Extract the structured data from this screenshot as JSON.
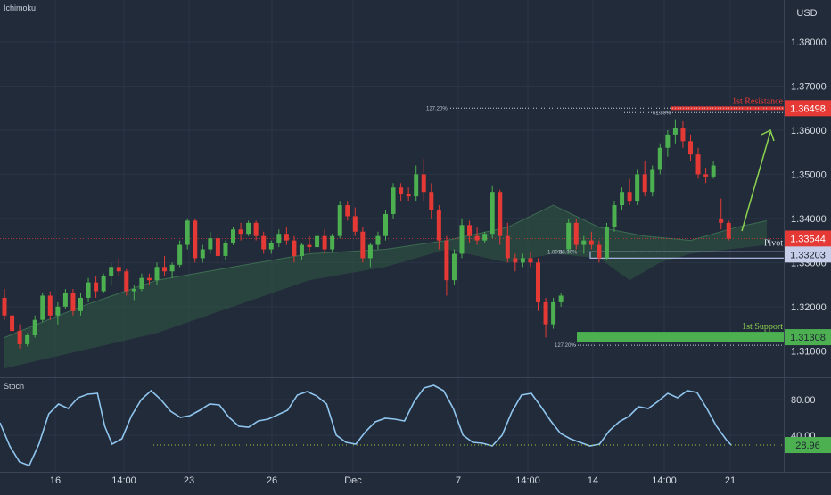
{
  "top_left": "Ichimoku",
  "currency": "USD",
  "stoch_title": "Stoch",
  "colors": {
    "background": "#222b3a",
    "grid": "#2c3546",
    "bull": "#4caf50",
    "bear": "#e53935",
    "resistance": "#e53935",
    "support": "#4caf50",
    "pivot": "#aeb9e6",
    "stoch_line": "#8fc5ee",
    "cloud": "#2f5a44",
    "arrow": "#8bd24f"
  },
  "chart_data": [
    {
      "type": "candlestick",
      "title": "",
      "y_range": [
        1.304,
        1.3895
      ],
      "y_ticks": [
        "1.38000",
        "1.37000",
        "1.36000",
        "1.35000",
        "1.34000",
        "1.33000",
        "1.32000",
        "1.31000"
      ],
      "x_ticks": [
        "16",
        "14:00",
        "23",
        "26",
        "Dec",
        "7",
        "14:00",
        "14",
        "14:00",
        "21"
      ],
      "current_price": "1.33544",
      "levels": [
        {
          "label": "1st Resistance",
          "value": "1.36498",
          "fib": "127.20%",
          "fib2": "61.80%"
        },
        {
          "label": "Pivot",
          "value": "1.33203",
          "fib": "1.80%",
          "fib2": "38.00%"
        },
        {
          "label": "1st Support",
          "value": "1.31308",
          "fib": "127.20%"
        }
      ],
      "candles": [
        [
          1.322,
          1.324,
          1.317,
          1.318
        ],
        [
          1.318,
          1.319,
          1.313,
          1.3145
        ],
        [
          1.3145,
          1.316,
          1.3105,
          1.3115
        ],
        [
          1.3115,
          1.314,
          1.311,
          1.3135
        ],
        [
          1.3135,
          1.318,
          1.313,
          1.317
        ],
        [
          1.317,
          1.323,
          1.3165,
          1.3225
        ],
        [
          1.3225,
          1.3235,
          1.317,
          1.318
        ],
        [
          1.318,
          1.321,
          1.316,
          1.32
        ],
        [
          1.32,
          1.324,
          1.3195,
          1.323
        ],
        [
          1.323,
          1.324,
          1.318,
          1.319
        ],
        [
          1.319,
          1.323,
          1.318,
          1.322
        ],
        [
          1.322,
          1.3265,
          1.321,
          1.3255
        ],
        [
          1.3255,
          1.327,
          1.322,
          1.3235
        ],
        [
          1.3235,
          1.3275,
          1.323,
          1.327
        ],
        [
          1.327,
          1.33,
          1.325,
          1.329
        ],
        [
          1.329,
          1.331,
          1.327,
          1.328
        ],
        [
          1.328,
          1.3285,
          1.3225,
          1.3235
        ],
        [
          1.3235,
          1.325,
          1.3215,
          1.324
        ],
        [
          1.324,
          1.3275,
          1.3235,
          1.3265
        ],
        [
          1.3265,
          1.3275,
          1.325,
          1.326
        ],
        [
          1.326,
          1.33,
          1.325,
          1.329
        ],
        [
          1.329,
          1.3315,
          1.327,
          1.328
        ],
        [
          1.328,
          1.33,
          1.3265,
          1.3295
        ],
        [
          1.3295,
          1.335,
          1.329,
          1.334
        ],
        [
          1.334,
          1.34,
          1.333,
          1.3395
        ],
        [
          1.3395,
          1.34,
          1.33,
          1.331
        ],
        [
          1.331,
          1.334,
          1.33,
          1.333
        ],
        [
          1.333,
          1.337,
          1.332,
          1.3355
        ],
        [
          1.3355,
          1.3365,
          1.33,
          1.3315
        ],
        [
          1.3315,
          1.335,
          1.3305,
          1.3345
        ],
        [
          1.3345,
          1.338,
          1.334,
          1.3375
        ],
        [
          1.3375,
          1.339,
          1.335,
          1.3365
        ],
        [
          1.3365,
          1.3395,
          1.336,
          1.339
        ],
        [
          1.339,
          1.3395,
          1.335,
          1.336
        ],
        [
          1.336,
          1.337,
          1.332,
          1.333
        ],
        [
          1.333,
          1.335,
          1.332,
          1.3345
        ],
        [
          1.3345,
          1.3375,
          1.3335,
          1.3365
        ],
        [
          1.3365,
          1.338,
          1.334,
          1.335
        ],
        [
          1.335,
          1.336,
          1.33,
          1.3315
        ],
        [
          1.3315,
          1.3345,
          1.3305,
          1.334
        ],
        [
          1.334,
          1.336,
          1.3325,
          1.3335
        ],
        [
          1.3335,
          1.337,
          1.333,
          1.336
        ],
        [
          1.336,
          1.3375,
          1.332,
          1.333
        ],
        [
          1.333,
          1.3365,
          1.3325,
          1.336
        ],
        [
          1.336,
          1.344,
          1.3355,
          1.343
        ],
        [
          1.343,
          1.344,
          1.3395,
          1.3405
        ],
        [
          1.3405,
          1.3425,
          1.336,
          1.337
        ],
        [
          1.337,
          1.338,
          1.33,
          1.331
        ],
        [
          1.331,
          1.3345,
          1.329,
          1.334
        ],
        [
          1.334,
          1.337,
          1.333,
          1.336
        ],
        [
          1.336,
          1.342,
          1.335,
          1.341
        ],
        [
          1.341,
          1.348,
          1.34,
          1.347
        ],
        [
          1.347,
          1.348,
          1.344,
          1.3455
        ],
        [
          1.3455,
          1.347,
          1.344,
          1.345
        ],
        [
          1.345,
          1.352,
          1.344,
          1.35
        ],
        [
          1.35,
          1.3535,
          1.344,
          1.346
        ],
        [
          1.346,
          1.348,
          1.34,
          1.342
        ],
        [
          1.342,
          1.343,
          1.333,
          1.335
        ],
        [
          1.335,
          1.336,
          1.3225,
          1.326
        ],
        [
          1.326,
          1.333,
          1.325,
          1.332
        ],
        [
          1.332,
          1.34,
          1.331,
          1.3385
        ],
        [
          1.3385,
          1.3395,
          1.3345,
          1.336
        ],
        [
          1.336,
          1.338,
          1.334,
          1.335
        ],
        [
          1.335,
          1.337,
          1.3345,
          1.3365
        ],
        [
          1.3365,
          1.3475,
          1.3355,
          1.346
        ],
        [
          1.346,
          1.3465,
          1.334,
          1.336
        ],
        [
          1.336,
          1.339,
          1.33,
          1.331
        ],
        [
          1.331,
          1.332,
          1.328,
          1.33
        ],
        [
          1.33,
          1.332,
          1.329,
          1.331
        ],
        [
          1.331,
          1.3325,
          1.329,
          1.33
        ],
        [
          1.33,
          1.331,
          1.319,
          1.321
        ],
        [
          1.321,
          1.322,
          1.313,
          1.316
        ],
        [
          1.316,
          1.322,
          1.315,
          1.321
        ],
        [
          1.321,
          1.323,
          1.32,
          1.3225
        ],
        [
          1.333,
          1.34,
          1.332,
          1.339
        ],
        [
          1.339,
          1.34,
          1.333,
          1.334
        ],
        [
          1.334,
          1.336,
          1.332,
          1.335
        ],
        [
          1.335,
          1.337,
          1.333,
          1.334
        ],
        [
          1.334,
          1.335,
          1.33,
          1.331
        ],
        [
          1.331,
          1.339,
          1.3305,
          1.338
        ],
        [
          1.338,
          1.344,
          1.337,
          1.343
        ],
        [
          1.343,
          1.347,
          1.342,
          1.346
        ],
        [
          1.346,
          1.349,
          1.343,
          1.344
        ],
        [
          1.344,
          1.351,
          1.343,
          1.35
        ],
        [
          1.35,
          1.353,
          1.345,
          1.346
        ],
        [
          1.346,
          1.352,
          1.345,
          1.351
        ],
        [
          1.351,
          1.357,
          1.35,
          1.356
        ],
        [
          1.356,
          1.36,
          1.354,
          1.359
        ],
        [
          1.359,
          1.3625,
          1.357,
          1.3605
        ],
        [
          1.3605,
          1.362,
          1.356,
          1.3575
        ],
        [
          1.3575,
          1.359,
          1.353,
          1.3545
        ],
        [
          1.3545,
          1.356,
          1.349,
          1.35
        ],
        [
          1.35,
          1.3515,
          1.348,
          1.3495
        ],
        [
          1.3495,
          1.353,
          1.349,
          1.352
        ],
        [
          1.34,
          1.3445,
          1.3375,
          1.339
        ],
        [
          1.339,
          1.3395,
          1.335,
          1.3354
        ]
      ],
      "cloud_upper": [
        [
          0,
          1.313
        ],
        [
          10,
          1.32
        ],
        [
          20,
          1.326
        ],
        [
          30,
          1.329
        ],
        [
          40,
          1.332
        ],
        [
          50,
          1.333
        ],
        [
          58,
          1.335
        ],
        [
          66,
          1.338
        ],
        [
          72,
          1.343
        ],
        [
          78,
          1.338
        ],
        [
          84,
          1.336
        ],
        [
          90,
          1.335
        ],
        [
          96,
          1.338
        ],
        [
          100,
          1.3395
        ]
      ],
      "cloud_lower": [
        [
          0,
          1.306
        ],
        [
          10,
          1.31
        ],
        [
          20,
          1.314
        ],
        [
          30,
          1.32
        ],
        [
          40,
          1.326
        ],
        [
          50,
          1.329
        ],
        [
          58,
          1.333
        ],
        [
          66,
          1.33
        ],
        [
          72,
          1.332
        ],
        [
          78,
          1.331
        ],
        [
          82,
          1.326
        ],
        [
          86,
          1.33
        ],
        [
          90,
          1.332
        ],
        [
          100,
          1.334
        ]
      ]
    },
    {
      "type": "line",
      "title": "Stoch",
      "y_range": [
        0,
        100
      ],
      "y_ticks": [
        "80.00",
        "40.00"
      ],
      "current_value": "28.96",
      "values": [
        [
          0,
          54
        ],
        [
          4,
          28
        ],
        [
          8,
          10
        ],
        [
          12,
          6
        ],
        [
          16,
          30
        ],
        [
          20,
          64
        ],
        [
          24,
          75
        ],
        [
          28,
          70
        ],
        [
          32,
          82
        ],
        [
          36,
          86
        ],
        [
          40,
          87
        ],
        [
          43,
          50
        ],
        [
          46,
          30
        ],
        [
          50,
          36
        ],
        [
          54,
          62
        ],
        [
          58,
          80
        ],
        [
          62,
          90
        ],
        [
          66,
          80
        ],
        [
          70,
          67
        ],
        [
          74,
          60
        ],
        [
          78,
          62
        ],
        [
          82,
          68
        ],
        [
          86,
          75
        ],
        [
          90,
          74
        ],
        [
          94,
          60
        ],
        [
          98,
          50
        ],
        [
          102,
          49
        ],
        [
          106,
          56
        ],
        [
          110,
          58
        ],
        [
          114,
          63
        ],
        [
          118,
          68
        ],
        [
          122,
          85
        ],
        [
          126,
          89
        ],
        [
          130,
          84
        ],
        [
          134,
          75
        ],
        [
          138,
          40
        ],
        [
          142,
          32
        ],
        [
          146,
          30
        ],
        [
          150,
          44
        ],
        [
          154,
          55
        ],
        [
          158,
          59
        ],
        [
          162,
          58
        ],
        [
          166,
          56
        ],
        [
          170,
          78
        ],
        [
          174,
          93
        ],
        [
          178,
          96
        ],
        [
          182,
          90
        ],
        [
          186,
          70
        ],
        [
          190,
          40
        ],
        [
          194,
          32
        ],
        [
          198,
          31
        ],
        [
          202,
          28
        ],
        [
          206,
          40
        ],
        [
          210,
          66
        ],
        [
          214,
          85
        ],
        [
          218,
          87
        ],
        [
          222,
          72
        ],
        [
          226,
          56
        ],
        [
          230,
          42
        ],
        [
          234,
          36
        ],
        [
          238,
          32
        ],
        [
          242,
          28
        ],
        [
          246,
          30
        ],
        [
          250,
          45
        ],
        [
          254,
          55
        ],
        [
          258,
          61
        ],
        [
          262,
          72
        ],
        [
          266,
          70
        ],
        [
          270,
          78
        ],
        [
          274,
          87
        ],
        [
          278,
          82
        ],
        [
          282,
          90
        ],
        [
          286,
          88
        ],
        [
          290,
          70
        ],
        [
          294,
          50
        ],
        [
          298,
          35
        ],
        [
          300,
          29
        ]
      ]
    }
  ]
}
